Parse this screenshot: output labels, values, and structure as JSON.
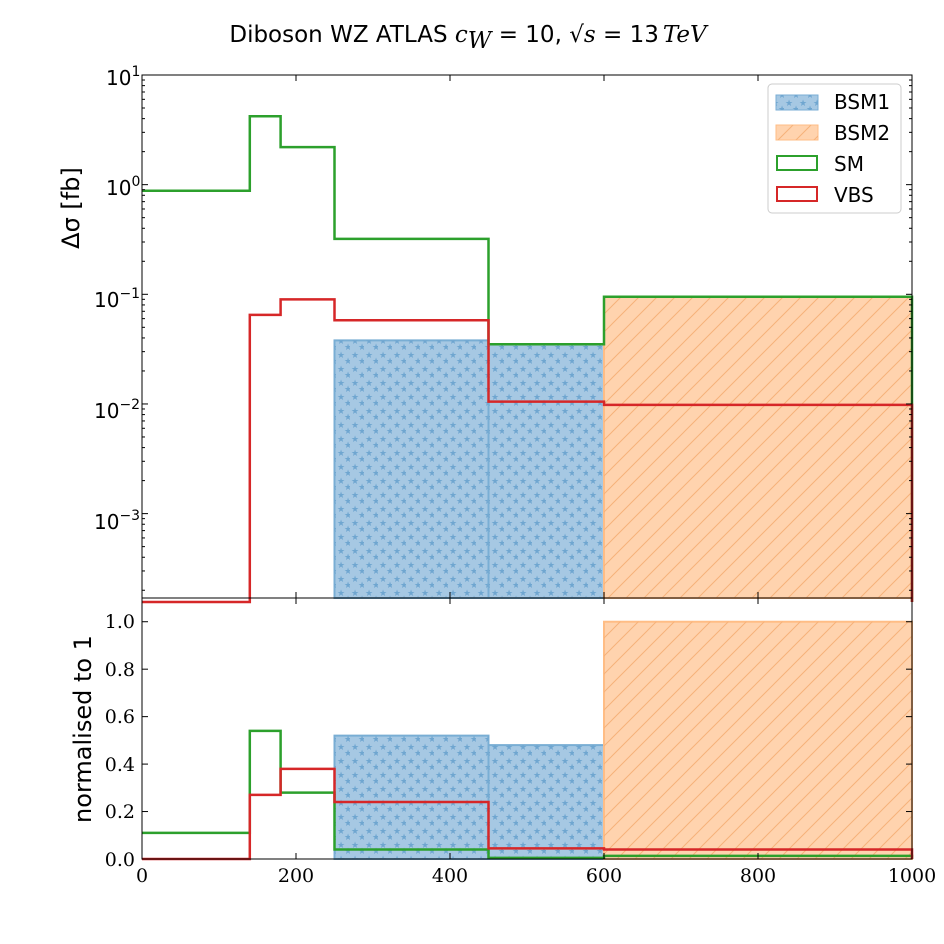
{
  "title": {
    "prefix": "Diboson  WZ ATLAS ",
    "c_symbol": "c",
    "c_subscript": "W",
    "c_eq": " = 10,  ",
    "sqrt_arg": "s",
    "energy": " = 13",
    "unit": "TeV"
  },
  "top_panel": {
    "ylabel": "Δσ [fb]",
    "ytick_labels": [
      {
        "base": "10",
        "exp": "1"
      },
      {
        "base": "10",
        "exp": "0"
      },
      {
        "base": "10",
        "exp": "−1"
      },
      {
        "base": "10",
        "exp": "−2"
      },
      {
        "base": "10",
        "exp": "−3"
      }
    ]
  },
  "bottom_panel": {
    "ylabel": "normalised to 1",
    "ytick_labels": [
      "0.0",
      "0.2",
      "0.4",
      "0.6",
      "0.8",
      "1.0"
    ]
  },
  "xtick_labels": [
    "0",
    "200",
    "400",
    "600",
    "800",
    "1000"
  ],
  "legend": [
    "BSM1",
    "BSM2",
    "SM",
    "VBS"
  ],
  "colors": {
    "BSM1_fill": "#a6c8e3",
    "BSM1_edge": "#79aed4",
    "BSM1_hatch": "#6fa6d0",
    "BSM2_fill": "#ffd3ae",
    "BSM2_edge": "#ffbd85",
    "BSM2_hatch": "#f5b27a",
    "SM": "#2ca02c",
    "VBS": "#d62728"
  },
  "chart_data": {
    "type": "histogram-step",
    "title": "Diboson  WZ ATLAS c_W = 10,  √s = 13 TeV",
    "xlim": [
      0,
      1000
    ],
    "bin_edges": [
      0,
      140,
      180,
      250,
      450,
      600,
      1000
    ],
    "top": {
      "ylabel": "Δσ [fb]",
      "yscale": "log",
      "ylim": [
        0.00017,
        10
      ],
      "series": [
        {
          "name": "BSM1",
          "style": "filled, star hatch",
          "values": [
            0,
            0,
            0,
            0.038,
            0.035,
            0
          ]
        },
        {
          "name": "BSM2",
          "style": "filled, diagonal hatch",
          "values": [
            0,
            0,
            0,
            0,
            0,
            0.095
          ]
        },
        {
          "name": "SM",
          "style": "step",
          "values": [
            0.88,
            4.2,
            2.2,
            0.32,
            0.035,
            0.095
          ]
        },
        {
          "name": "VBS",
          "style": "step",
          "values": [
            0,
            0.065,
            0.09,
            0.058,
            0.0105,
            0.0098
          ]
        }
      ]
    },
    "bottom": {
      "ylabel": "normalised to 1",
      "yscale": "linear",
      "ylim": [
        0,
        1.1
      ],
      "series": [
        {
          "name": "BSM1",
          "values": [
            0,
            0,
            0,
            0.52,
            0.48,
            0
          ]
        },
        {
          "name": "BSM2",
          "values": [
            0,
            0,
            0,
            0,
            0,
            1.0
          ]
        },
        {
          "name": "SM",
          "values": [
            0.11,
            0.54,
            0.28,
            0.04,
            0.005,
            0.013
          ]
        },
        {
          "name": "VBS",
          "values": [
            0,
            0.27,
            0.38,
            0.24,
            0.045,
            0.04
          ]
        }
      ]
    }
  }
}
